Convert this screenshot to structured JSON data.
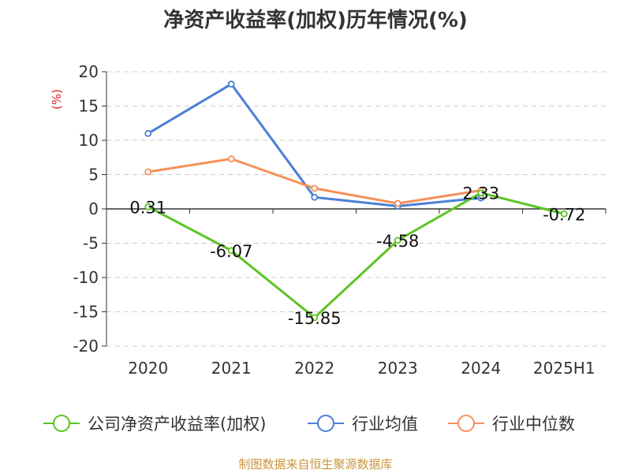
{
  "chart_data": {
    "type": "line",
    "title": "净资产收益率(加权)历年情况(%)",
    "ylabel": "(%)",
    "xlabel": "",
    "categories": [
      "2020",
      "2021",
      "2022",
      "2023",
      "2024",
      "2025H1"
    ],
    "ylim": [
      -20,
      20
    ],
    "yticks": [
      "20",
      "15",
      "10",
      "5",
      "0",
      "-5",
      "-10",
      "-15",
      "-20"
    ],
    "grid": true,
    "legend_position": "bottom",
    "series": [
      {
        "name": "公司净资产收益率(加权)",
        "color": "#5cc424",
        "values": [
          0.31,
          -6.07,
          -15.85,
          -4.58,
          2.33,
          -0.72
        ],
        "labels": [
          "0.31",
          "-6.07",
          "-15.85",
          "-4.58",
          "2.33",
          "-0.72"
        ]
      },
      {
        "name": "行业均值",
        "color": "#4a7fd6",
        "values": [
          11.0,
          18.2,
          1.7,
          0.4,
          1.6,
          null
        ]
      },
      {
        "name": "行业中位数",
        "color": "#f5905a",
        "values": [
          5.4,
          7.3,
          3.0,
          0.8,
          2.7,
          null
        ]
      }
    ]
  },
  "source": "制图数据来自恒生聚源数据库",
  "colors": {
    "axis_label": "#e02020",
    "source": "#c8963c",
    "grid": "#cccccc",
    "text": "#333333"
  }
}
